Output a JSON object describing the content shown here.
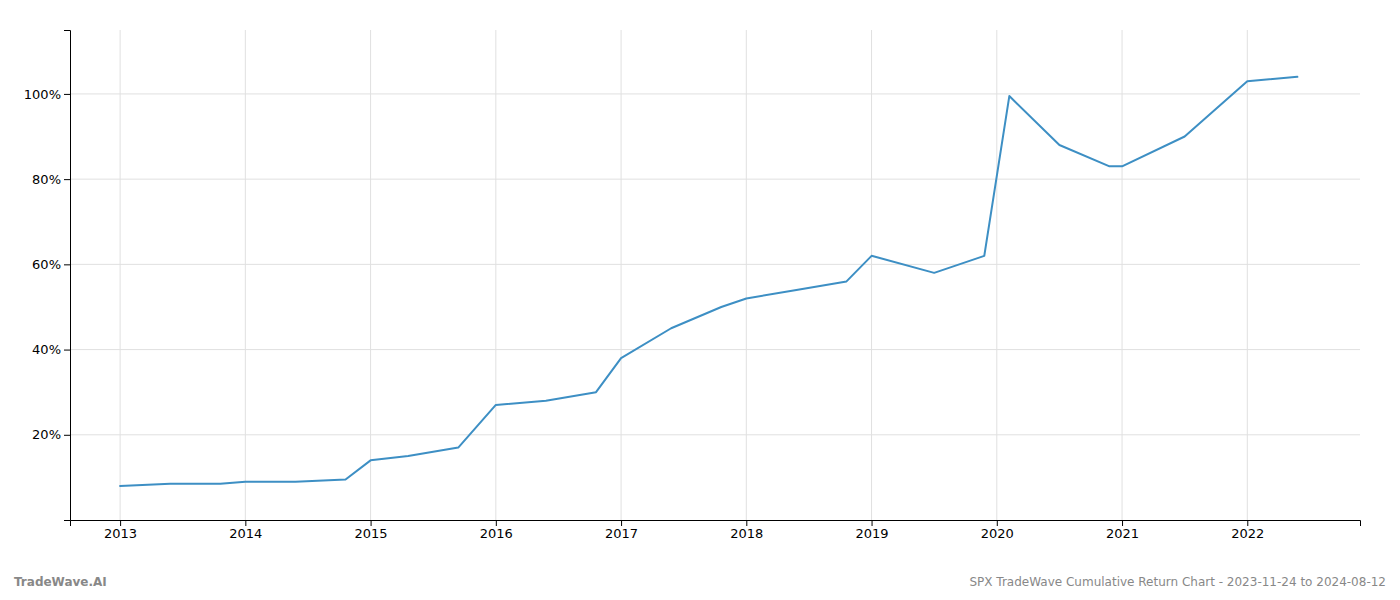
{
  "chart_data": {
    "type": "line",
    "x": [
      2013,
      2013.4,
      2013.8,
      2014,
      2014.4,
      2014.8,
      2015,
      2015.3,
      2015.7,
      2016,
      2016.4,
      2016.8,
      2017,
      2017.4,
      2017.8,
      2018,
      2018.4,
      2018.8,
      2019,
      2019.5,
      2019.9,
      2020.1,
      2020.5,
      2020.9,
      2021,
      2021.5,
      2022,
      2022.4
    ],
    "values": [
      8,
      8.5,
      8.5,
      9,
      9,
      9.5,
      14,
      15,
      17,
      27,
      28,
      30,
      38,
      45,
      50,
      52,
      54,
      56,
      62,
      58,
      62,
      99.5,
      88,
      83,
      83,
      90,
      103,
      104
    ],
    "color": "#3d8fc4",
    "xlim": [
      2012.6,
      2022.9
    ],
    "ylim": [
      0,
      115
    ],
    "xticks": [
      2013,
      2014,
      2015,
      2016,
      2017,
      2018,
      2019,
      2020,
      2021,
      2022
    ],
    "yticks": [
      {
        "value": 20,
        "label": "20%"
      },
      {
        "value": 40,
        "label": "40%"
      },
      {
        "value": 60,
        "label": "60%"
      },
      {
        "value": 80,
        "label": "80%"
      },
      {
        "value": 100,
        "label": "100%"
      }
    ],
    "grid": true,
    "annotations": [
      "TradeWave.AI",
      "SPX TradeWave Cumulative Return Chart - 2023-11-24 to 2024-08-12"
    ]
  }
}
